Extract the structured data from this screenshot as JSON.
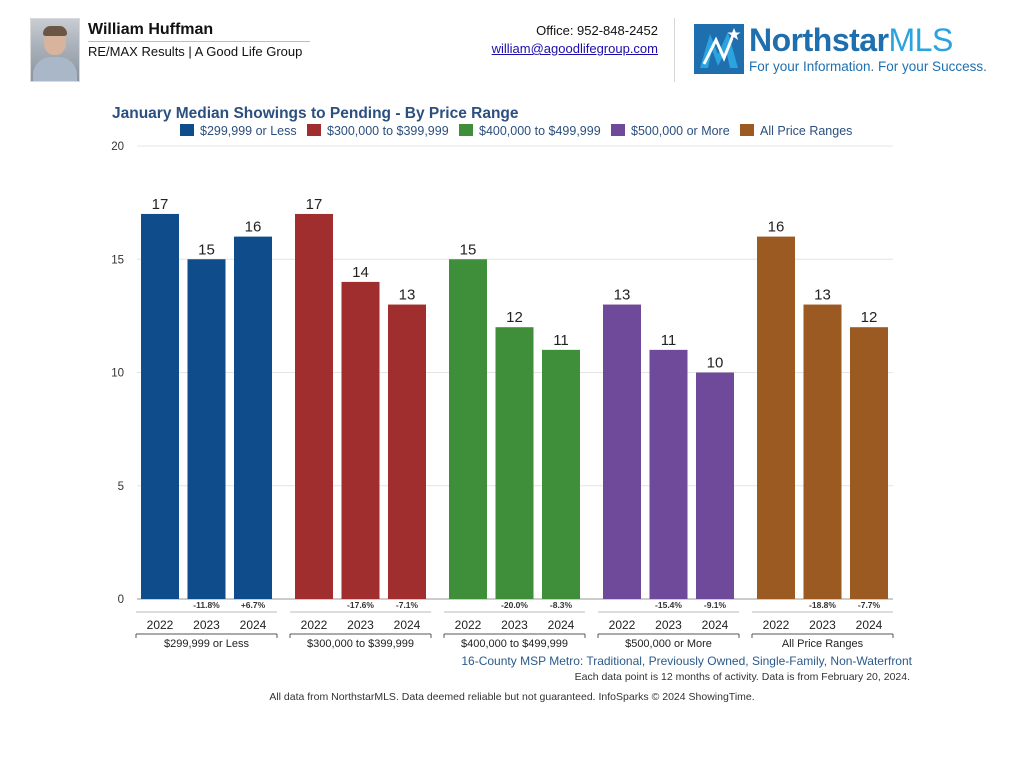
{
  "header": {
    "agent_name": "William Huffman",
    "agent_company": "RE/MAX Results | A Good Life Group",
    "office_phone": "Office: 952-848-2452",
    "email": "william@agoodlifegroup.com",
    "logo_brand": "Northstar",
    "logo_suffix": "MLS",
    "logo_tagline": "For your Information. For your Success."
  },
  "colors": {
    "blue": "#0e4c8c",
    "red": "#a12e2e",
    "green": "#3f8f3a",
    "purple": "#6f4a9a",
    "brown": "#9a5a22"
  },
  "chart_data": {
    "type": "bar",
    "title": "January Median Showings to Pending - By Price Range",
    "ylim": [
      0,
      20
    ],
    "yticks": [
      0,
      5,
      10,
      15,
      20
    ],
    "grid": true,
    "legend_position": "top",
    "years": [
      "2022",
      "2023",
      "2024"
    ],
    "series": [
      {
        "name": "$299,999 or Less",
        "color": "#0e4c8c",
        "values": [
          17,
          15,
          16
        ],
        "changes": [
          "",
          "-11.8%",
          "+6.7%"
        ]
      },
      {
        "name": "$300,000 to $399,999",
        "color": "#a12e2e",
        "values": [
          17,
          14,
          13
        ],
        "changes": [
          "",
          "-17.6%",
          "-7.1%"
        ]
      },
      {
        "name": "$400,000 to $499,999",
        "color": "#3f8f3a",
        "values": [
          15,
          12,
          11
        ],
        "changes": [
          "",
          "-20.0%",
          "-8.3%"
        ]
      },
      {
        "name": "$500,000 or More",
        "color": "#6f4a9a",
        "values": [
          13,
          11,
          10
        ],
        "changes": [
          "",
          "-15.4%",
          "-9.1%"
        ]
      },
      {
        "name": "All Price Ranges",
        "color": "#9a5a22",
        "values": [
          16,
          13,
          12
        ],
        "changes": [
          "",
          "-18.8%",
          "-7.7%"
        ]
      }
    ]
  },
  "notes": {
    "region": "16-County MSP Metro: Traditional, Previously Owned, Single-Family, Non-Waterfront",
    "data_info": "Each data point is 12 months of activity. Data is from February 20, 2024.",
    "footer": "All data from NorthstarMLS. Data deemed reliable but not guaranteed. InfoSparks © 2024 ShowingTime."
  }
}
